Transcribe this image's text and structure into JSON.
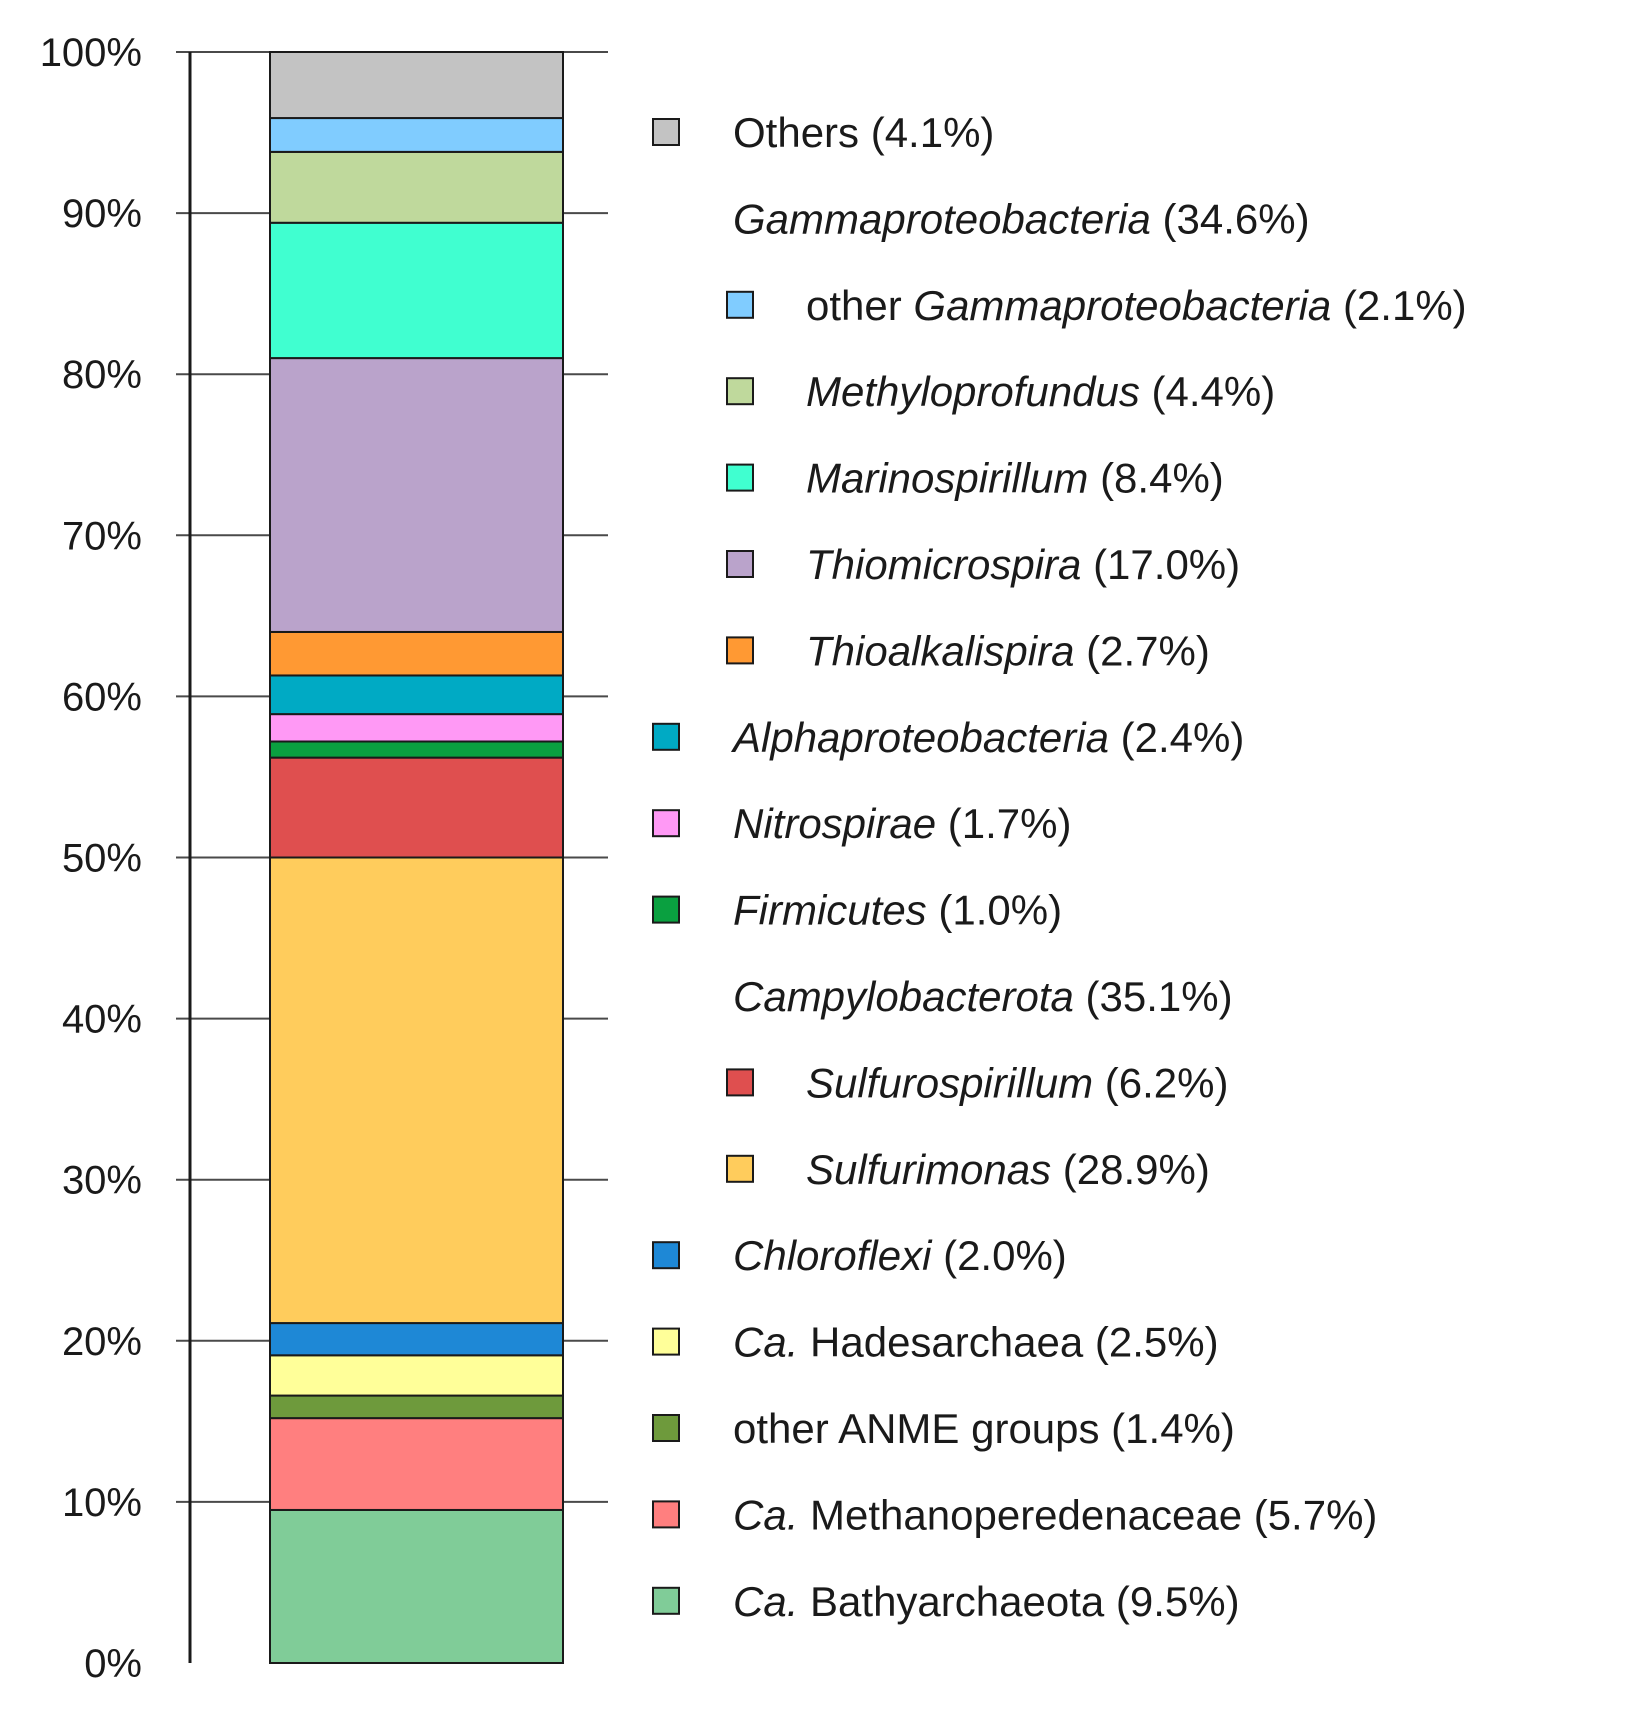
{
  "chart_data": {
    "type": "stacked-bar",
    "title": "",
    "xlabel": "",
    "ylabel": "",
    "ylim": [
      0,
      100
    ],
    "yticks": [
      "0%",
      "10%",
      "20%",
      "30%",
      "40%",
      "50%",
      "60%",
      "70%",
      "80%",
      "90%",
      "100%"
    ],
    "grid": true,
    "legend_position": "right",
    "segments": [
      {
        "name": "Ca. Bathyarchaeota",
        "value": 9.5,
        "color": "#80cc98"
      },
      {
        "name": "Ca. Methanoperedenaceae",
        "value": 5.7,
        "color": "#ff7f7f"
      },
      {
        "name": "other ANME groups",
        "value": 1.4,
        "color": "#6e9a3c"
      },
      {
        "name": "Ca. Hadesarchaea",
        "value": 2.5,
        "color": "#ffff99"
      },
      {
        "name": "Chloroflexi",
        "value": 2.0,
        "color": "#1e88d6"
      },
      {
        "name": "Sulfurimonas",
        "value": 28.9,
        "color": "#ffcc5c"
      },
      {
        "name": "Sulfurospirillum",
        "value": 6.2,
        "color": "#df4f4f"
      },
      {
        "name": "Firmicutes",
        "value": 1.0,
        "color": "#0aa040"
      },
      {
        "name": "Nitrospirae",
        "value": 1.7,
        "color": "#ff99f5"
      },
      {
        "name": "Alphaproteobacteria",
        "value": 2.4,
        "color": "#00aac4"
      },
      {
        "name": "Thioalkalispira",
        "value": 2.7,
        "color": "#ff9933"
      },
      {
        "name": "Thiomicrospira",
        "value": 17.0,
        "color": "#baa3cb"
      },
      {
        "name": "Marinospirillum",
        "value": 8.4,
        "color": "#40ffd0"
      },
      {
        "name": "Methyloprofundus",
        "value": 4.4,
        "color": "#bfd99c"
      },
      {
        "name": "other Gammaproteobacteria",
        "value": 2.1,
        "color": "#80ccff"
      },
      {
        "name": "Others",
        "value": 4.1,
        "color": "#c3c3c3"
      }
    ],
    "legend": [
      {
        "parts": [
          {
            "t": "Others",
            "i": false
          },
          {
            "t": " (4.1%)",
            "i": false
          }
        ],
        "color": "#c3c3c3",
        "indent": 0
      },
      {
        "parts": [
          {
            "t": "Gammaproteobacteria",
            "i": true
          },
          {
            "t": " (34.6%)",
            "i": false
          }
        ],
        "color": null,
        "indent": 0
      },
      {
        "parts": [
          {
            "t": "other ",
            "i": false
          },
          {
            "t": "Gammaproteobacteria",
            "i": true
          },
          {
            "t": " (2.1%)",
            "i": false
          }
        ],
        "color": "#80ccff",
        "indent": 1
      },
      {
        "parts": [
          {
            "t": "Methyloprofundus",
            "i": true
          },
          {
            "t": " (4.4%)",
            "i": false
          }
        ],
        "color": "#bfd99c",
        "indent": 1
      },
      {
        "parts": [
          {
            "t": "Marinospirillum",
            "i": true
          },
          {
            "t": " (8.4%)",
            "i": false
          }
        ],
        "color": "#40ffd0",
        "indent": 1
      },
      {
        "parts": [
          {
            "t": "Thiomicrospira",
            "i": true
          },
          {
            "t": " (17.0%)",
            "i": false
          }
        ],
        "color": "#baa3cb",
        "indent": 1
      },
      {
        "parts": [
          {
            "t": "Thioalkalispira",
            "i": true
          },
          {
            "t": " (2.7%)",
            "i": false
          }
        ],
        "color": "#ff9933",
        "indent": 1
      },
      {
        "parts": [
          {
            "t": "Alphaproteobacteria",
            "i": true
          },
          {
            "t": " (2.4%)",
            "i": false
          }
        ],
        "color": "#00aac4",
        "indent": 0
      },
      {
        "parts": [
          {
            "t": "Nitrospirae",
            "i": true
          },
          {
            "t": " (1.7%)",
            "i": false
          }
        ],
        "color": "#ff99f5",
        "indent": 0
      },
      {
        "parts": [
          {
            "t": "Firmicutes",
            "i": true
          },
          {
            "t": " (1.0%)",
            "i": false
          }
        ],
        "color": "#0aa040",
        "indent": 0
      },
      {
        "parts": [
          {
            "t": "Campylobacterota",
            "i": true
          },
          {
            "t": " (35.1%)",
            "i": false
          }
        ],
        "color": null,
        "indent": 0
      },
      {
        "parts": [
          {
            "t": "Sulfurospirillum",
            "i": true
          },
          {
            "t": " (6.2%)",
            "i": false
          }
        ],
        "color": "#df4f4f",
        "indent": 1
      },
      {
        "parts": [
          {
            "t": "Sulfurimonas",
            "i": true
          },
          {
            "t": " (28.9%)",
            "i": false
          }
        ],
        "color": "#ffcc5c",
        "indent": 1
      },
      {
        "parts": [
          {
            "t": "Chloroflexi",
            "i": true
          },
          {
            "t": " (2.0%)",
            "i": false
          }
        ],
        "color": "#1e88d6",
        "indent": 0
      },
      {
        "parts": [
          {
            "t": "Ca.",
            "i": true
          },
          {
            "t": " Hadesarchaea (2.5%)",
            "i": false
          }
        ],
        "color": "#ffff99",
        "indent": 0
      },
      {
        "parts": [
          {
            "t": "other ANME groups (1.4%)",
            "i": false
          }
        ],
        "color": "#6e9a3c",
        "indent": 0
      },
      {
        "parts": [
          {
            "t": "Ca.",
            "i": true
          },
          {
            "t": " Methanoperedenaceae (5.7%)",
            "i": false
          }
        ],
        "color": "#ff7f7f",
        "indent": 0
      },
      {
        "parts": [
          {
            "t": "Ca.",
            "i": true
          },
          {
            "t": " Bathyarchaeota (9.5%)",
            "i": false
          }
        ],
        "color": "#80cc98",
        "indent": 0
      }
    ]
  }
}
